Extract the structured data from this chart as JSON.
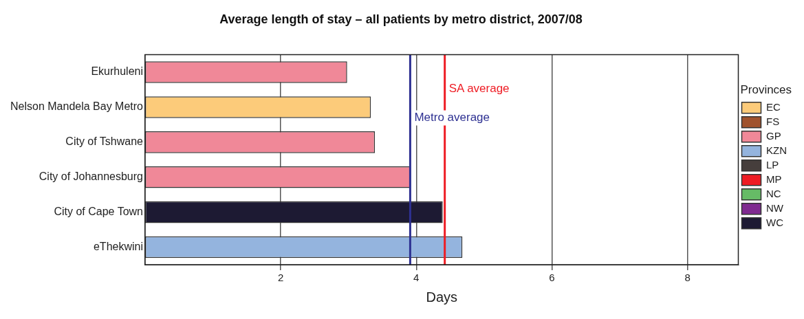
{
  "chart_data": {
    "type": "bar",
    "orientation": "horizontal",
    "stacked": true,
    "title": "Average length of stay – all patients by metro district, 2007/08",
    "xlabel": "Days",
    "legend_title": "Provinces",
    "legend": "right",
    "grid": "x",
    "categories": [
      "Ekurhuleni",
      "Nelson Mandela Bay Metro",
      "City of Tshwane",
      "City of Johannesburg",
      "City of Cape Town",
      "eThekwini"
    ],
    "xlim": [
      0,
      8.75
    ],
    "xticks": [
      2,
      4,
      6,
      8
    ],
    "series": [
      {
        "name": "EC",
        "color": "#fccb7a",
        "values": [
          null,
          3.33,
          null,
          null,
          null,
          null
        ]
      },
      {
        "name": "FS",
        "color": "#a0522d",
        "values": [
          null,
          null,
          null,
          null,
          null,
          null
        ]
      },
      {
        "name": "GP",
        "color": "#f08898",
        "values": [
          2.98,
          null,
          3.39,
          3.92,
          null,
          null
        ]
      },
      {
        "name": "KZN",
        "color": "#94b4de",
        "values": [
          null,
          null,
          null,
          null,
          null,
          4.68
        ]
      },
      {
        "name": "LP",
        "color": "#463e3c",
        "values": [
          null,
          null,
          null,
          null,
          null,
          null
        ]
      },
      {
        "name": "MP",
        "color": "#ee1c24",
        "values": [
          null,
          null,
          null,
          null,
          null,
          null
        ]
      },
      {
        "name": "NC",
        "color": "#66bb66",
        "values": [
          null,
          null,
          null,
          null,
          null,
          null
        ]
      },
      {
        "name": "NW",
        "color": "#7f2a90",
        "values": [
          null,
          null,
          null,
          null,
          null,
          null
        ]
      },
      {
        "name": "WC",
        "color": "#1d1a33",
        "values": [
          null,
          null,
          null,
          null,
          4.39,
          null
        ]
      }
    ],
    "ref_lines": [
      {
        "axis": "x",
        "value": 4.42,
        "label": "SA average",
        "color": "#ee1c24"
      },
      {
        "axis": "x",
        "value": 3.91,
        "label": "Metro average",
        "color": "#2e3192"
      }
    ]
  }
}
